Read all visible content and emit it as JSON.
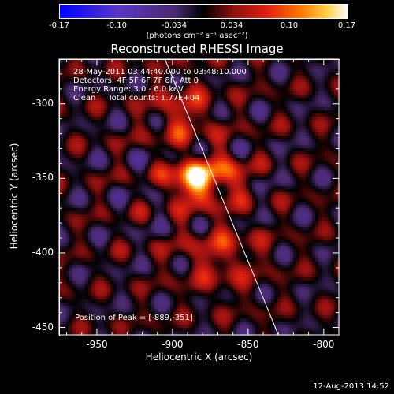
{
  "colorbar": {
    "ticks": [
      "-0.17",
      "-0.10",
      "-0.034",
      "0.034",
      "0.10",
      "0.17"
    ],
    "unit": "(photons cm⁻² s⁻¹ asec⁻²)"
  },
  "chart_data": {
    "type": "heatmap",
    "title": "Reconstructed RHESSI Image",
    "xlabel": "Heliocentric X (arcsec)",
    "ylabel": "Heliocentric Y (arcsec)",
    "xlim": [
      -975,
      -790
    ],
    "ylim": [
      -455,
      -270
    ],
    "xticks": [
      "-950",
      "-900",
      "-850",
      "-800"
    ],
    "yticks": [
      "-300",
      "-350",
      "-400",
      "-450"
    ],
    "color_range": [
      -0.17,
      0.17
    ],
    "peak": [
      -889,
      -351
    ],
    "limb_line": [
      [
        -905,
        -270
      ],
      [
        -830,
        -455
      ]
    ],
    "annotations": [
      "28-May-2011 03:44:40.000 to 03:48:10.000",
      "Detectors: 4F 5F 6F 7F 8F, Att 0",
      "Energy Range: 3.0 - 6.0 keV",
      "Clean     Total counts: 1.77E+04"
    ],
    "peak_label": "Position of Peak = [-889,-351]"
  },
  "footer": "12-Aug-2013 14:52"
}
